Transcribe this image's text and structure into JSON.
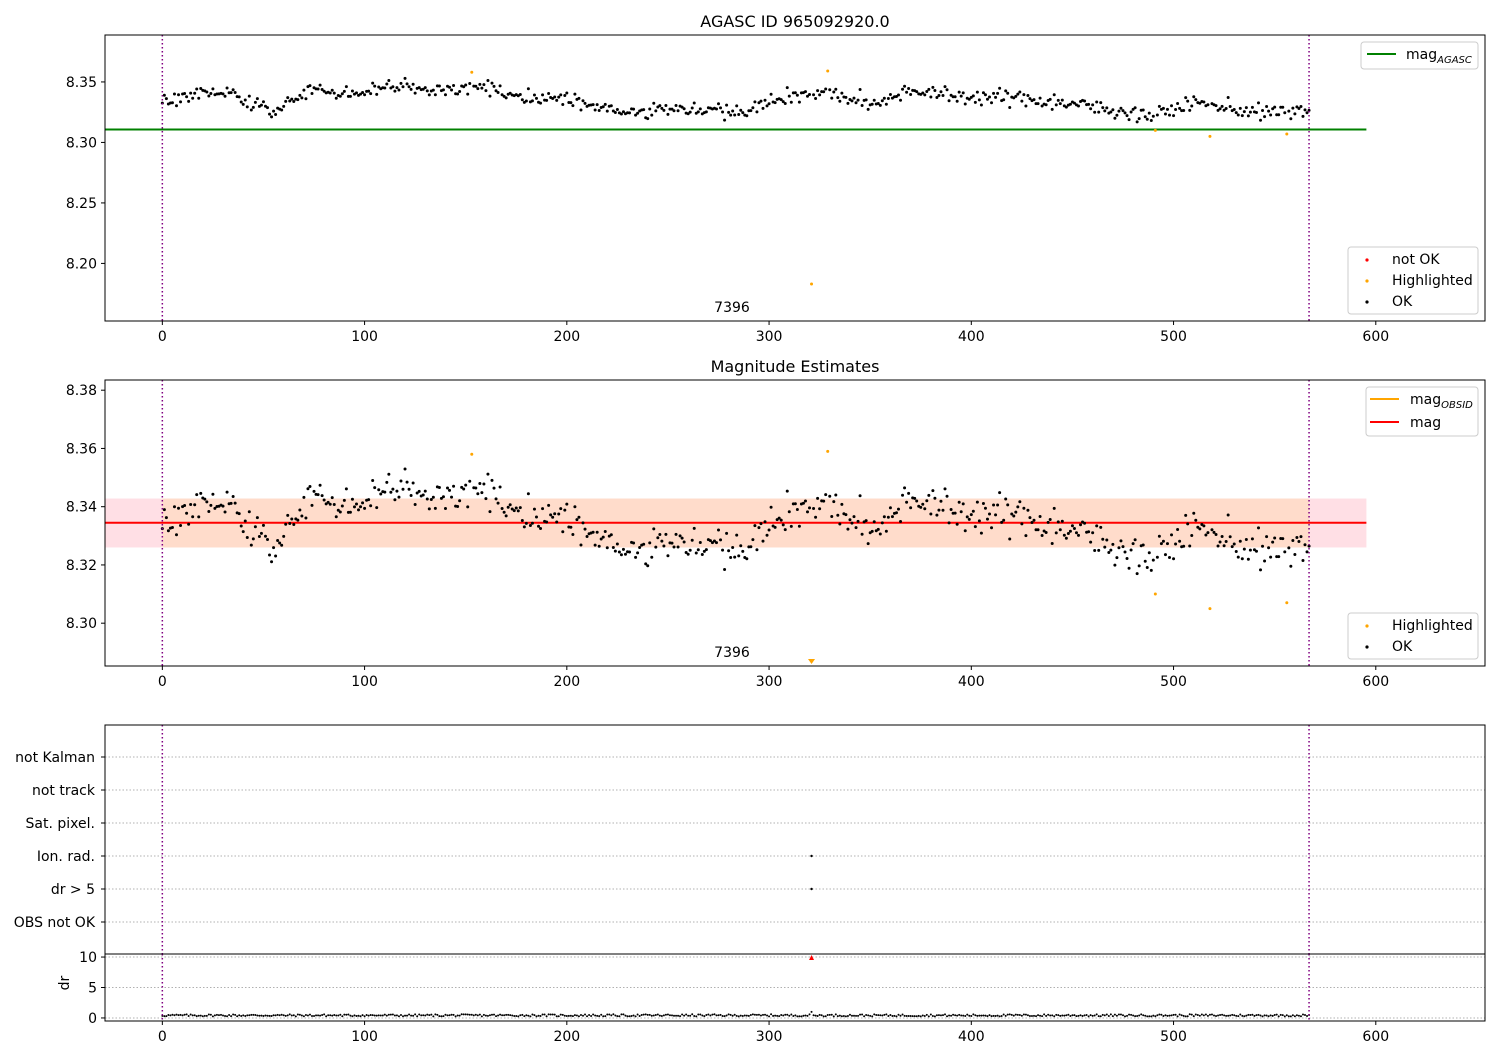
{
  "colors": {
    "ok": "#000000",
    "not_ok": "#ff0000",
    "highlighted": "#ffa500",
    "obs_boundary": "#800080",
    "mag_agasc_line": "#008000",
    "mag_line": "#ff0000",
    "mag_obsid_line": "#ffa500",
    "band_outer": "#ffc0cb",
    "band_inner": "#ffdab9",
    "flag_grid": "#b0b0b0"
  },
  "chart_data": [
    {
      "id": "agasc",
      "type": "scatter",
      "title": "AGASC ID 965092920.0",
      "xlim": [
        -28.35,
        654
      ],
      "ylim": [
        8.1524,
        8.3888
      ],
      "xticks": [
        "0",
        "100",
        "200",
        "300",
        "400",
        "500",
        "600"
      ],
      "yticks": [
        "8.20",
        "8.25",
        "8.30",
        "8.35"
      ],
      "grid": false,
      "obs_boundaries": [
        0,
        567
      ],
      "obsid_annotation": {
        "text": "7396",
        "x": 283.5
      },
      "hline": {
        "name": "mag_AGASC",
        "y": 8.3107,
        "xmin": -28.35,
        "xmax": 595.35
      },
      "legend_top": {
        "placement": "upper right",
        "entries": [
          {
            "label_main": "mag",
            "label_sub": "AGASC",
            "color_key": "mag_agasc_line",
            "kind": "line"
          }
        ]
      },
      "legend_bottom": {
        "placement": "lower right",
        "entries": [
          {
            "label": "not OK",
            "color_key": "not_ok",
            "kind": "point"
          },
          {
            "label": "Highlighted",
            "color_key": "highlighted",
            "kind": "point"
          },
          {
            "label": "OK",
            "color_key": "ok",
            "kind": "point"
          }
        ]
      },
      "series": [
        {
          "name": "OK",
          "color_key": "ok",
          "source": "ok_points"
        },
        {
          "name": "Highlighted",
          "color_key": "highlighted",
          "points": [
            [
              153,
              8.358
            ],
            [
              321,
              8.183
            ],
            [
              329,
              8.359
            ],
            [
              491,
              8.31
            ],
            [
              518,
              8.305
            ],
            [
              556,
              8.307
            ]
          ]
        },
        {
          "name": "not OK",
          "color_key": "not_ok",
          "points": []
        }
      ]
    },
    {
      "id": "mag",
      "type": "scatter",
      "title": "Magnitude Estimates",
      "xlim": [
        -28.35,
        654
      ],
      "ylim": [
        8.2853,
        8.3835
      ],
      "xticks": [
        "0",
        "100",
        "200",
        "300",
        "400",
        "500",
        "600"
      ],
      "yticks": [
        "8.30",
        "8.32",
        "8.34",
        "8.36",
        "8.38"
      ],
      "grid": false,
      "obs_boundaries": [
        0,
        567
      ],
      "obsid_annotation": {
        "text": "7396",
        "x": 283.5
      },
      "mag_mean": 8.3345,
      "band_outer": [
        8.326,
        8.3428
      ],
      "band_inner": [
        8.326,
        8.3428
      ],
      "band_xlim": [
        -28.35,
        595.35
      ],
      "mag_obsid": {
        "y": 8.3345,
        "xmin": 0,
        "xmax": 567
      },
      "legend_top": {
        "placement": "upper right",
        "entries": [
          {
            "label_main": "mag",
            "label_sub": "OBSID",
            "color_key": "mag_obsid_line",
            "kind": "line"
          },
          {
            "label_main": "mag",
            "label_sub": "",
            "color_key": "mag_line",
            "kind": "line"
          }
        ]
      },
      "legend_bottom": {
        "placement": "lower right",
        "entries": [
          {
            "label": "Highlighted",
            "color_key": "highlighted",
            "kind": "point"
          },
          {
            "label": "OK",
            "color_key": "ok",
            "kind": "point"
          }
        ]
      },
      "series": [
        {
          "name": "OK",
          "color_key": "ok",
          "source": "ok_points"
        },
        {
          "name": "Highlighted",
          "color_key": "highlighted",
          "points": [
            [
              153,
              8.358
            ],
            [
              329,
              8.359
            ],
            [
              491,
              8.31
            ],
            [
              518,
              8.305
            ],
            [
              556,
              8.307
            ]
          ]
        }
      ],
      "offscale_markers": [
        {
          "x": 321,
          "label": "below range"
        }
      ]
    },
    {
      "id": "flags",
      "type": "scatter",
      "xlim": [
        -28.35,
        654
      ],
      "xticks": [
        "0",
        "100",
        "200",
        "300",
        "400",
        "500",
        "600"
      ],
      "categories": [
        "OBS not OK",
        "dr > 5",
        "Ion. rad.",
        "Sat. pixel.",
        "not track",
        "not Kalman"
      ],
      "grid": true,
      "obs_boundaries": [
        0,
        567
      ],
      "flag_points": [
        {
          "category": "Ion. rad.",
          "x": 321
        },
        {
          "category": "dr > 5",
          "x": 321
        }
      ]
    },
    {
      "id": "dr",
      "type": "line",
      "ylabel": "dr",
      "xlim": [
        -28.35,
        654
      ],
      "ylim": [
        -0.5,
        10.5
      ],
      "yticks": [
        "0",
        "5",
        "10"
      ],
      "xticks": [
        "0",
        "100",
        "200",
        "300",
        "400",
        "500",
        "600"
      ],
      "obs_boundaries": [
        0,
        567
      ],
      "spike": {
        "x": 321,
        "y": 10,
        "color_key": "not_ok"
      }
    }
  ]
}
